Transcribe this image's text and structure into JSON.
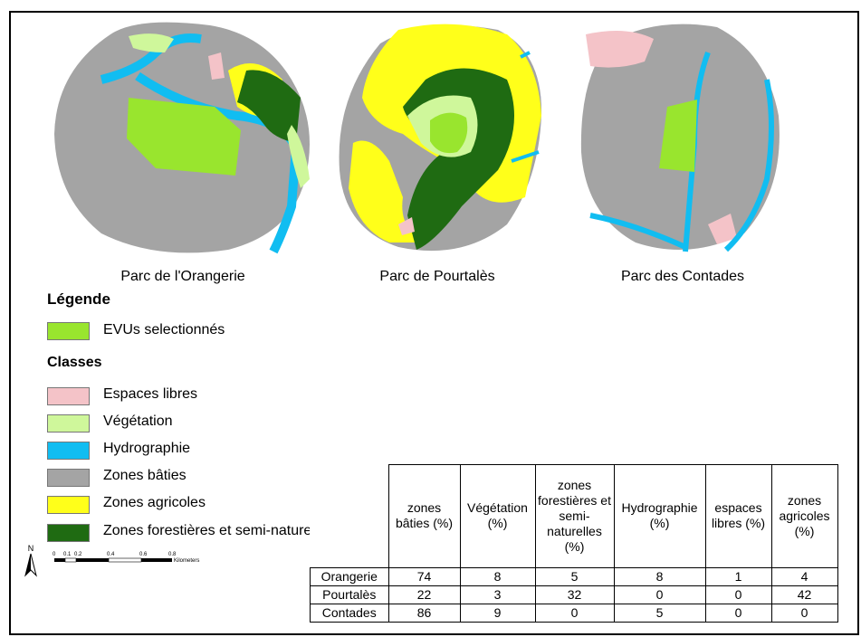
{
  "maps": [
    {
      "name": "Parc de l'Orangerie"
    },
    {
      "name": "Parc de Pourtalès"
    },
    {
      "name": "Parc des Contades"
    }
  ],
  "legend": {
    "title": "Légende",
    "selected_label": "EVUs selectionnés",
    "selected_color": "#99e52e",
    "classes_title": "Classes",
    "classes": [
      {
        "label": "Espaces libres",
        "color": "#f4c3c8"
      },
      {
        "label": "Végétation",
        "color": "#cff79b"
      },
      {
        "label": "Hydrographie",
        "color": "#11bdf1"
      },
      {
        "label": "Zones bâties",
        "color": "#a4a4a4"
      },
      {
        "label": "Zones agricoles",
        "color": "#ffff1a"
      },
      {
        "label": "Zones forestières et semi-naturelles",
        "color": "#1f6b12"
      }
    ]
  },
  "north_label": "N",
  "scale": {
    "ticks": [
      "0",
      "0.1",
      "0.2",
      "0.4",
      "0.6",
      "0.8"
    ],
    "unit": "Kilometers"
  },
  "table": {
    "headers": [
      "zones bâties (%)",
      "Végétation (%)",
      "zones forestières et semi-naturelles (%)",
      "Hydrographie (%)",
      "espaces libres (%)",
      "zones agricoles (%)"
    ],
    "rows": [
      {
        "name": "Orangerie",
        "values": [
          "74",
          "8",
          "5",
          "8",
          "1",
          "4"
        ]
      },
      {
        "name": "Pourtalès",
        "values": [
          "22",
          "3",
          "32",
          "0",
          "0",
          "42"
        ]
      },
      {
        "name": "Contades",
        "values": [
          "86",
          "9",
          "0",
          "5",
          "0",
          "0"
        ]
      }
    ]
  }
}
